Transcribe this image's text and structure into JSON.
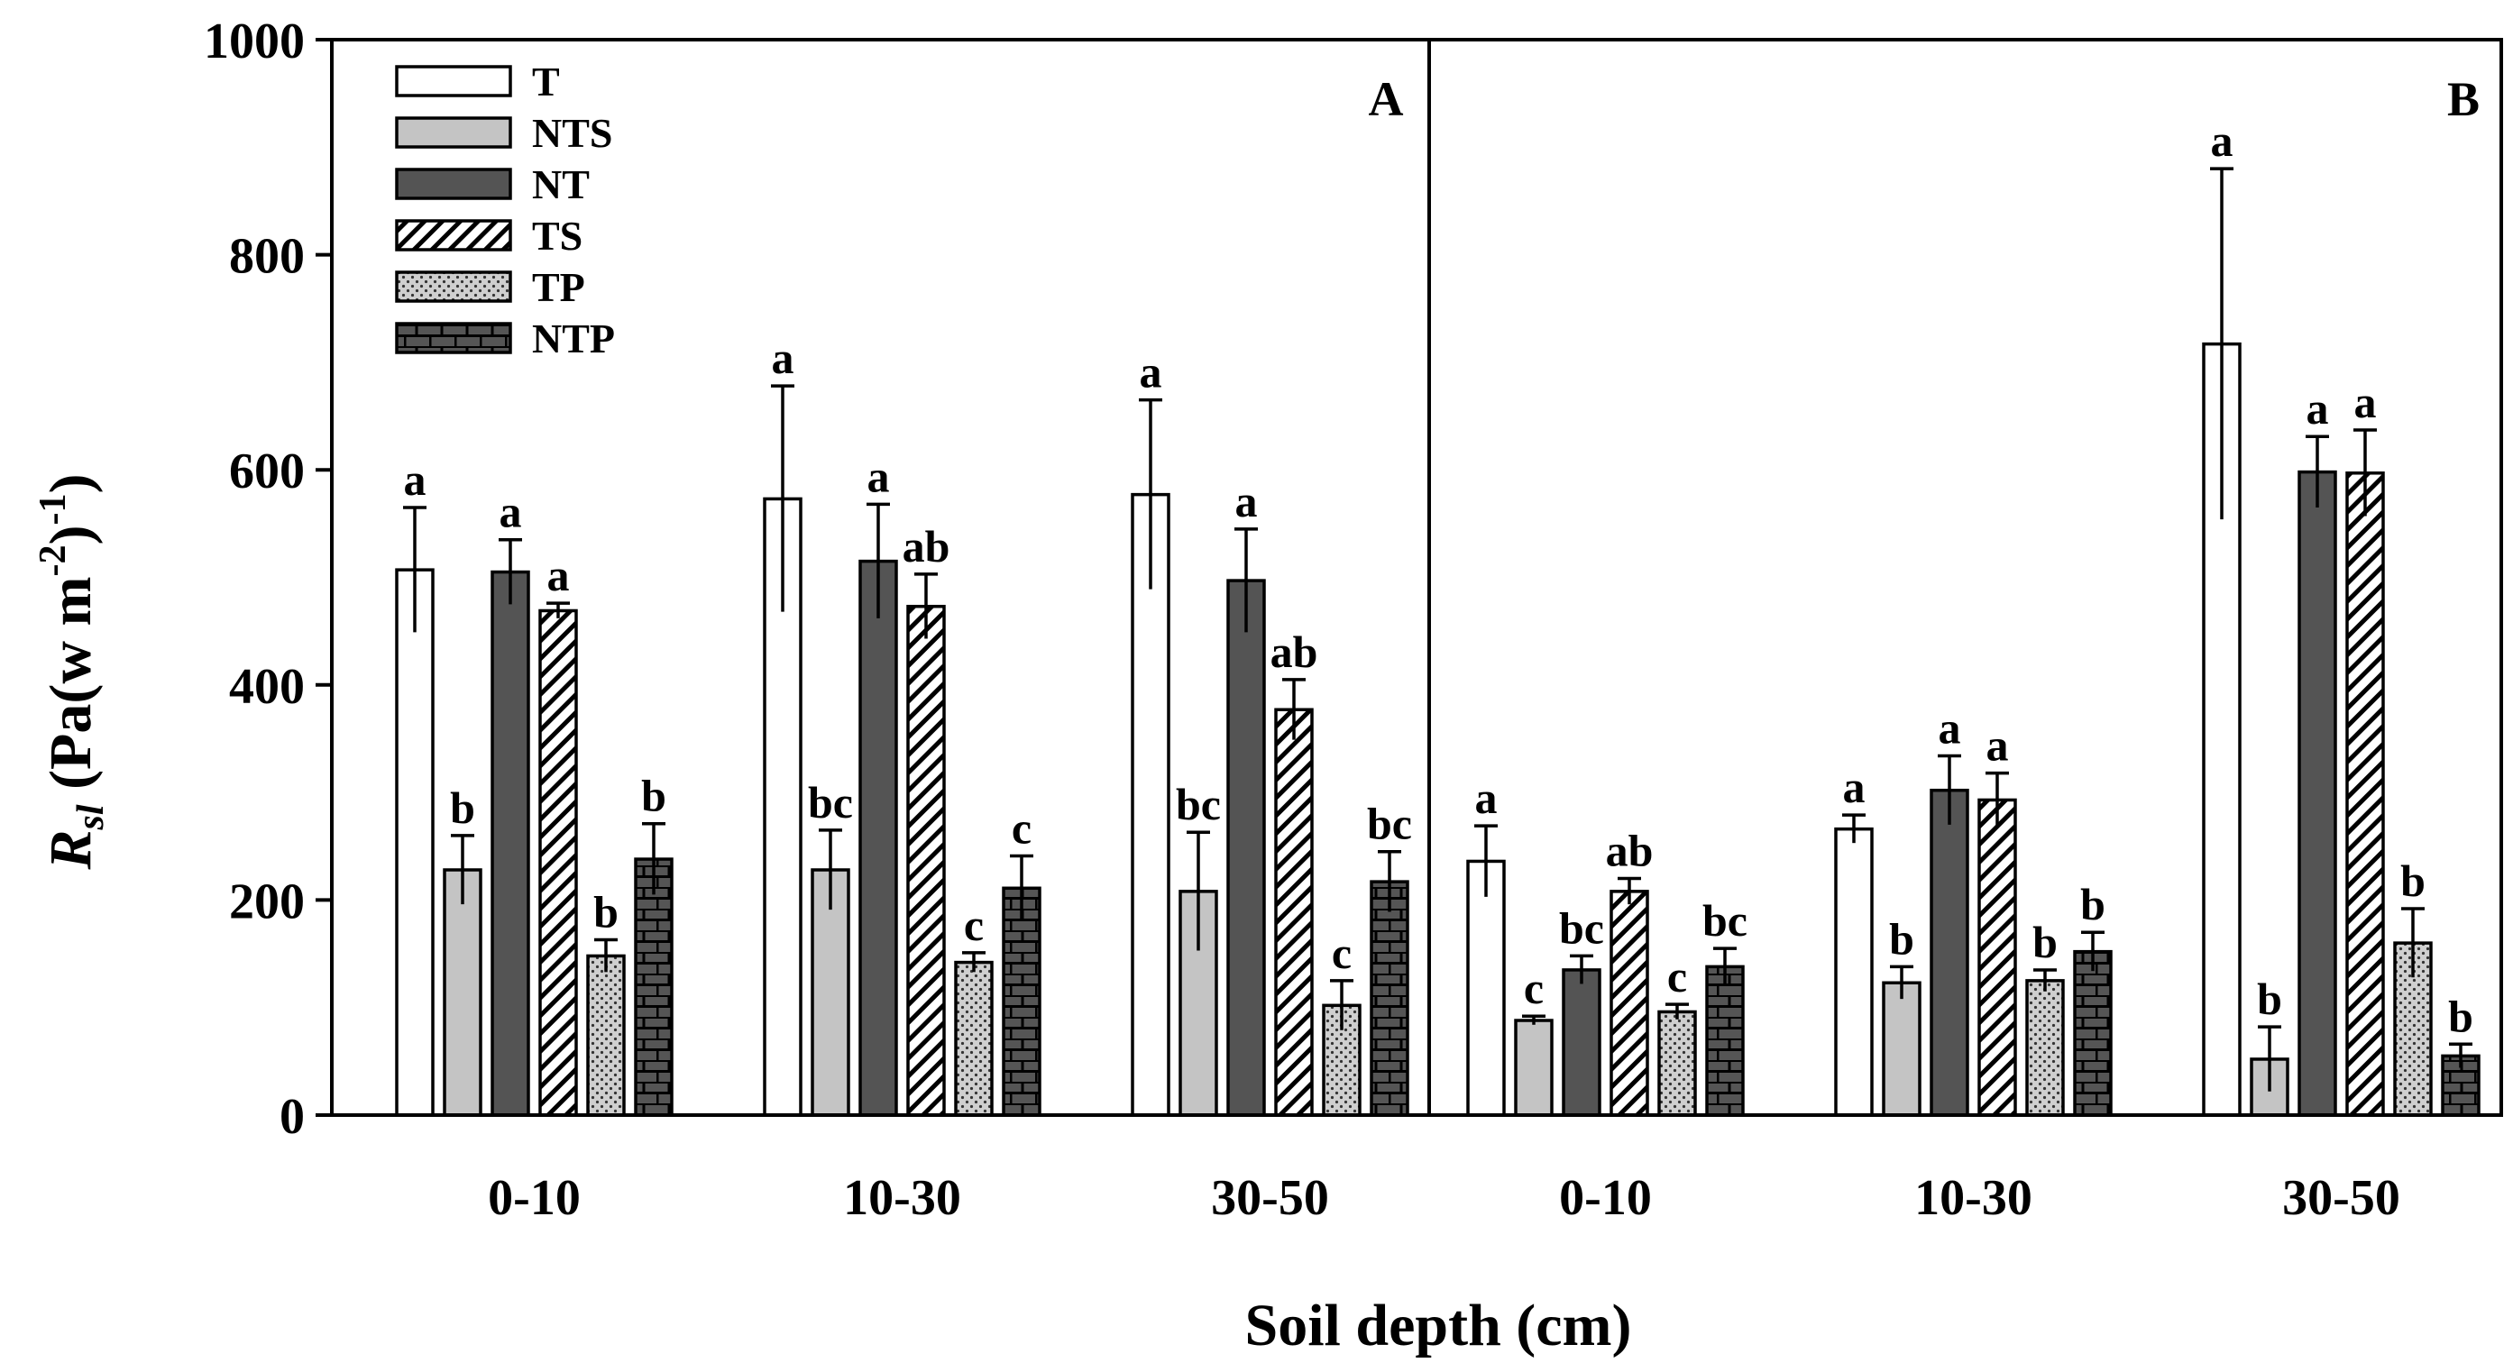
{
  "chart_data": {
    "type": "bar",
    "ylabel_main": "R",
    "ylabel_sub": "sl",
    "ylabel_rest_1": " (Pa(w m",
    "ylabel_exp_1": "-2",
    "ylabel_rest_2": ")",
    "ylabel_exp_2": "-1",
    "ylabel_rest_3": ")",
    "xlabel": "Soil depth (cm)",
    "ylim": [
      0,
      1000
    ],
    "yticks": [
      "0",
      "200",
      "400",
      "600",
      "800",
      "1000"
    ],
    "ytick_values": [
      0,
      200,
      400,
      600,
      800,
      1000
    ],
    "legend": [
      {
        "name": "T",
        "pattern": "white"
      },
      {
        "name": "NTS",
        "pattern": "lightgray"
      },
      {
        "name": "NT",
        "pattern": "darkgray"
      },
      {
        "name": "TS",
        "pattern": "hatch"
      },
      {
        "name": "TP",
        "pattern": "dots"
      },
      {
        "name": "NTP",
        "pattern": "brick"
      }
    ],
    "panels": [
      {
        "label": "A",
        "categories": [
          "0-10",
          "10-30",
          "30-50"
        ],
        "series": [
          {
            "name": "T",
            "values": [
              507,
              573,
              577
            ],
            "errors": [
              58,
              105,
              88
            ],
            "letters": [
              "a",
              "a",
              "a"
            ]
          },
          {
            "name": "NTS",
            "values": [
              228,
              228,
              208
            ],
            "errors": [
              32,
              37,
              55
            ],
            "letters": [
              "b",
              "bc",
              "bc"
            ]
          },
          {
            "name": "NT",
            "values": [
              505,
              515,
              497
            ],
            "errors": [
              30,
              53,
              48
            ],
            "letters": [
              "a",
              "a",
              "a"
            ]
          },
          {
            "name": "TS",
            "values": [
              469,
              473,
              377
            ],
            "errors": [
              7,
              30,
              28
            ],
            "letters": [
              "a",
              "ab",
              "ab"
            ]
          },
          {
            "name": "TP",
            "values": [
              148,
              142,
              102
            ],
            "errors": [
              15,
              9,
              23
            ],
            "letters": [
              "b",
              "c",
              "c"
            ]
          },
          {
            "name": "NTP",
            "values": [
              238,
              211,
              217
            ],
            "errors": [
              33,
              30,
              28
            ],
            "letters": [
              "b",
              "c",
              "bc"
            ]
          }
        ]
      },
      {
        "label": "B",
        "categories": [
          "0-10",
          "10-30",
          "30-50"
        ],
        "series": [
          {
            "name": "T",
            "values": [
              236,
              266,
              717
            ],
            "errors": [
              33,
              13,
              163
            ],
            "letters": [
              "a",
              "a",
              "a"
            ]
          },
          {
            "name": "NTS",
            "values": [
              88,
              123,
              52
            ],
            "errors": [
              4,
              15,
              30
            ],
            "letters": [
              "c",
              "b",
              "b"
            ]
          },
          {
            "name": "NT",
            "values": [
              135,
              302,
              598
            ],
            "errors": [
              13,
              32,
              33
            ],
            "letters": [
              "bc",
              "a",
              "a"
            ]
          },
          {
            "name": "TS",
            "values": [
              208,
              293,
              597
            ],
            "errors": [
              12,
              25,
              40
            ],
            "letters": [
              "ab",
              "a",
              "a"
            ]
          },
          {
            "name": "TP",
            "values": [
              96,
              125,
              160
            ],
            "errors": [
              7,
              10,
              32
            ],
            "letters": [
              "c",
              "b",
              "b"
            ]
          },
          {
            "name": "NTP",
            "values": [
              138,
              152,
              55
            ],
            "errors": [
              17,
              18,
              11
            ],
            "letters": [
              "bc",
              "b",
              "b"
            ]
          }
        ]
      }
    ]
  }
}
